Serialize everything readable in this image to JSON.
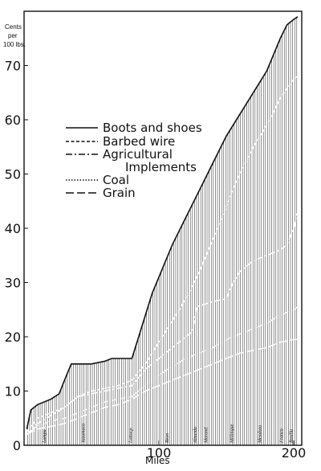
{
  "chart_data": {
    "type": "area",
    "title": "",
    "xlabel": "Miles",
    "ylabel_lines": [
      "Cents",
      "per",
      "100 lbs."
    ],
    "xlim": [
      0,
      205
    ],
    "ylim": [
      0,
      80
    ],
    "x_ticks": [
      100,
      200
    ],
    "y_ticks": [
      0,
      10,
      20,
      30,
      40,
      50,
      60,
      70
    ],
    "grid": false,
    "legend_position": "upper-left",
    "stations": [
      {
        "label": "Lampa",
        "x": 16
      },
      {
        "label": "Yazamaca",
        "x": 45
      },
      {
        "label": "Lottocp",
        "x": 80
      },
      {
        "label": "Reyn",
        "x": 107
      },
      {
        "label": "Almeida",
        "x": 128
      },
      {
        "label": "Marand",
        "x": 136
      },
      {
        "label": "Millinque",
        "x": 155
      },
      {
        "label": "Mendoza",
        "x": 176
      },
      {
        "label": "Franco",
        "x": 192
      },
      {
        "label": "Rosilla",
        "x": 199
      }
    ],
    "series": [
      {
        "name": "Boots and shoes",
        "dash": "solid",
        "x": [
          2,
          5,
          10,
          20,
          26,
          30,
          35,
          45,
          50,
          60,
          65,
          70,
          75,
          80,
          85,
          90,
          95,
          100,
          105,
          110,
          120,
          130,
          140,
          150,
          160,
          170,
          180,
          190,
          195,
          200,
          203
        ],
        "y": [
          3,
          6.5,
          7.5,
          8.5,
          9.5,
          12,
          15,
          15,
          15,
          15.5,
          16,
          16,
          16,
          16,
          20,
          24,
          28,
          31,
          34,
          37,
          42,
          47,
          52,
          57,
          61,
          65,
          69,
          75,
          77.5,
          78.5,
          79
        ]
      },
      {
        "name": "Barbed wire",
        "dash": "dashed-short",
        "x": [
          2,
          10,
          20,
          30,
          40,
          50,
          60,
          70,
          80,
          90,
          100,
          110,
          120,
          130,
          140,
          150,
          160,
          170,
          180,
          190,
          200,
          203
        ],
        "y": [
          2.5,
          5,
          6,
          7,
          9,
          10,
          10.5,
          11,
          12,
          15,
          19,
          23,
          27,
          32,
          38,
          44,
          50,
          55,
          59,
          64,
          67.5,
          68
        ]
      },
      {
        "name": "Agricultural Implements",
        "dash": "dash-dot",
        "x": [
          2,
          10,
          20,
          30,
          40,
          50,
          60,
          70,
          80,
          90,
          100,
          110,
          120,
          125,
          128,
          140,
          150,
          155,
          160,
          170,
          180,
          190,
          195,
          200,
          203
        ],
        "y": [
          2,
          4,
          5.5,
          7,
          9,
          9.5,
          10,
          10.5,
          11,
          14,
          16,
          18,
          20,
          21,
          25.5,
          26.5,
          27,
          30,
          32,
          34,
          35,
          36,
          37,
          40,
          43
        ]
      },
      {
        "name": "Coal",
        "dash": "dotted",
        "x": [
          2,
          10,
          20,
          30,
          40,
          50,
          60,
          70,
          80,
          90,
          100,
          110,
          120,
          130,
          140,
          150,
          160,
          170,
          180,
          190,
          200,
          203
        ],
        "y": [
          2,
          3.5,
          4.5,
          5,
          6,
          7,
          8,
          8.5,
          9,
          11,
          13,
          14.5,
          16,
          17,
          18,
          19.5,
          20.5,
          21.5,
          22.5,
          24,
          25,
          25.5
        ]
      },
      {
        "name": "Grain",
        "dash": "dashed-long",
        "x": [
          2,
          10,
          20,
          30,
          40,
          50,
          60,
          70,
          80,
          90,
          100,
          110,
          120,
          130,
          140,
          150,
          160,
          170,
          180,
          190,
          200,
          203
        ],
        "y": [
          2,
          3,
          3.5,
          4,
          5,
          6,
          7,
          7.5,
          8.5,
          10,
          11,
          12,
          13,
          14,
          15,
          16,
          17,
          17.5,
          18,
          19,
          19.5,
          19.5
        ]
      }
    ]
  },
  "legend": {
    "items": [
      {
        "label": "Boots and shoes"
      },
      {
        "label": "Barbed wire"
      },
      {
        "label": "Agricultural"
      },
      {
        "label": "Implements"
      },
      {
        "label": "Coal"
      },
      {
        "label": "Grain"
      }
    ]
  },
  "colors": {
    "ink": "#111111",
    "paper": "#ffffff"
  }
}
